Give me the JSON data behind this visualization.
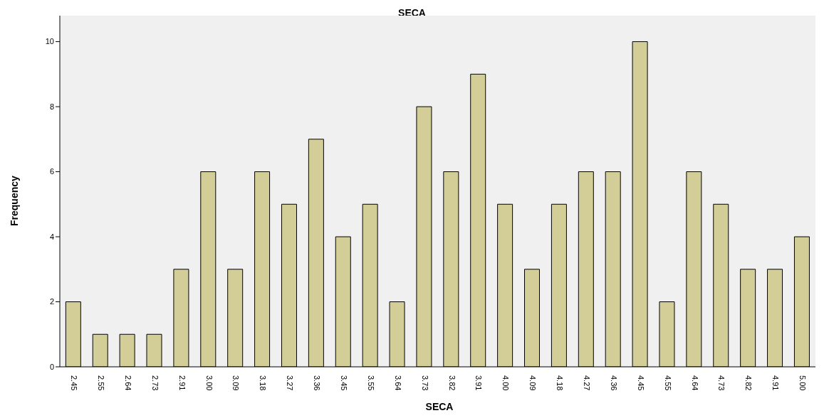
{
  "chart_data": {
    "type": "bar",
    "title": "SECA",
    "xlabel": "SECA",
    "ylabel": "Frequency",
    "categories": [
      "2.45",
      "2.55",
      "2.64",
      "2.73",
      "2.91",
      "3.00",
      "3.09",
      "3.18",
      "3.27",
      "3.36",
      "3.45",
      "3.55",
      "3.64",
      "3.73",
      "3.82",
      "3.91",
      "4.00",
      "4.09",
      "4.18",
      "4.27",
      "4.36",
      "4.45",
      "4.55",
      "4.64",
      "4.73",
      "4.82",
      "4.91",
      "5.00"
    ],
    "values": [
      2,
      1,
      1,
      1,
      3,
      6,
      3,
      6,
      5,
      7,
      4,
      5,
      2,
      8,
      6,
      9,
      5,
      3,
      5,
      6,
      6,
      10,
      2,
      6,
      5,
      3,
      3,
      4
    ],
    "color": "#d3ce97",
    "ylim": [
      0,
      10.8
    ],
    "yticks": [
      0,
      2,
      4,
      6,
      8,
      10
    ],
    "grid": false,
    "legend": false
  }
}
